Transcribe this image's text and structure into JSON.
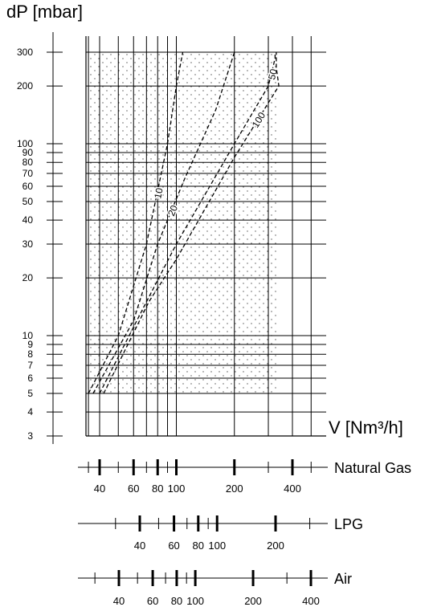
{
  "chart_data": {
    "type": "line",
    "ylabel": "dP [mbar]",
    "xlabel": "V [Nm³/h]",
    "y_scale": "log",
    "x_scale": "log",
    "ylim": [
      3,
      300
    ],
    "y_ticks": [
      {
        "value": 3,
        "label": "3"
      },
      {
        "value": 4,
        "label": "4"
      },
      {
        "value": 5,
        "label": "5"
      },
      {
        "value": 6,
        "label": "6"
      },
      {
        "value": 7,
        "label": "7"
      },
      {
        "value": 8,
        "label": "8"
      },
      {
        "value": 9,
        "label": "9"
      },
      {
        "value": 10,
        "label": "10"
      },
      {
        "value": 20,
        "label": "20"
      },
      {
        "value": 30,
        "label": "30"
      },
      {
        "value": 40,
        "label": "40"
      },
      {
        "value": 50,
        "label": "50"
      },
      {
        "value": 60,
        "label": "60"
      },
      {
        "value": 70,
        "label": "70"
      },
      {
        "value": 80,
        "label": "80"
      },
      {
        "value": 90,
        "label": "90"
      },
      {
        "value": 100,
        "label": "100"
      },
      {
        "value": 200,
        "label": "200"
      },
      {
        "value": 300,
        "label": "300"
      }
    ],
    "x_axis_ref": "Natural Gas",
    "xlim": [
      32,
      520
    ],
    "x_grid": [
      35,
      40,
      50,
      60,
      70,
      80,
      90,
      100,
      200,
      300,
      400,
      500
    ],
    "operating_region": {
      "x": [
        35,
        340
      ],
      "y": [
        5,
        300
      ]
    },
    "grid": true,
    "series": [
      {
        "name": "10",
        "x": [
          35,
          50,
          70,
          90,
          100,
          108
        ],
        "y": [
          5,
          10,
          30,
          100,
          200,
          300
        ]
      },
      {
        "name": "20",
        "x": [
          37,
          60,
          80,
          110,
          160,
          200
        ],
        "y": [
          5,
          12,
          30,
          65,
          150,
          300
        ]
      },
      {
        "name": "50",
        "x": [
          40,
          70,
          100,
          200,
          300,
          320,
          325,
          325
        ],
        "y": [
          5,
          15,
          30,
          100,
          200,
          260,
          280,
          300
        ]
      },
      {
        "name": "100",
        "x": [
          42,
          72,
          100,
          200,
          340,
          330,
          330
        ],
        "y": [
          5,
          15,
          25,
          85,
          200,
          250,
          300
        ]
      }
    ],
    "scales": [
      {
        "name": "Natural Gas",
        "ticks": [
          35,
          40,
          50,
          60,
          70,
          80,
          90,
          100,
          200,
          300,
          400,
          500
        ],
        "major": [
          40,
          60,
          80,
          100,
          200,
          400
        ],
        "labels": [
          "40",
          "60",
          "80",
          "100",
          "200",
          "400"
        ]
      },
      {
        "name": "LPG",
        "ticks": [
          30,
          40,
          50,
          60,
          70,
          80,
          90,
          100,
          200,
          300
        ],
        "major": [
          40,
          60,
          80,
          100,
          200
        ],
        "labels": [
          "40",
          "60",
          "80",
          "100",
          "200"
        ]
      },
      {
        "name": "Air",
        "ticks": [
          30,
          40,
          50,
          60,
          70,
          80,
          90,
          100,
          200,
          300,
          400
        ],
        "major": [
          40,
          60,
          80,
          100,
          200,
          400
        ],
        "labels": [
          "40",
          "60",
          "80",
          "100",
          "200",
          "400"
        ]
      }
    ]
  }
}
